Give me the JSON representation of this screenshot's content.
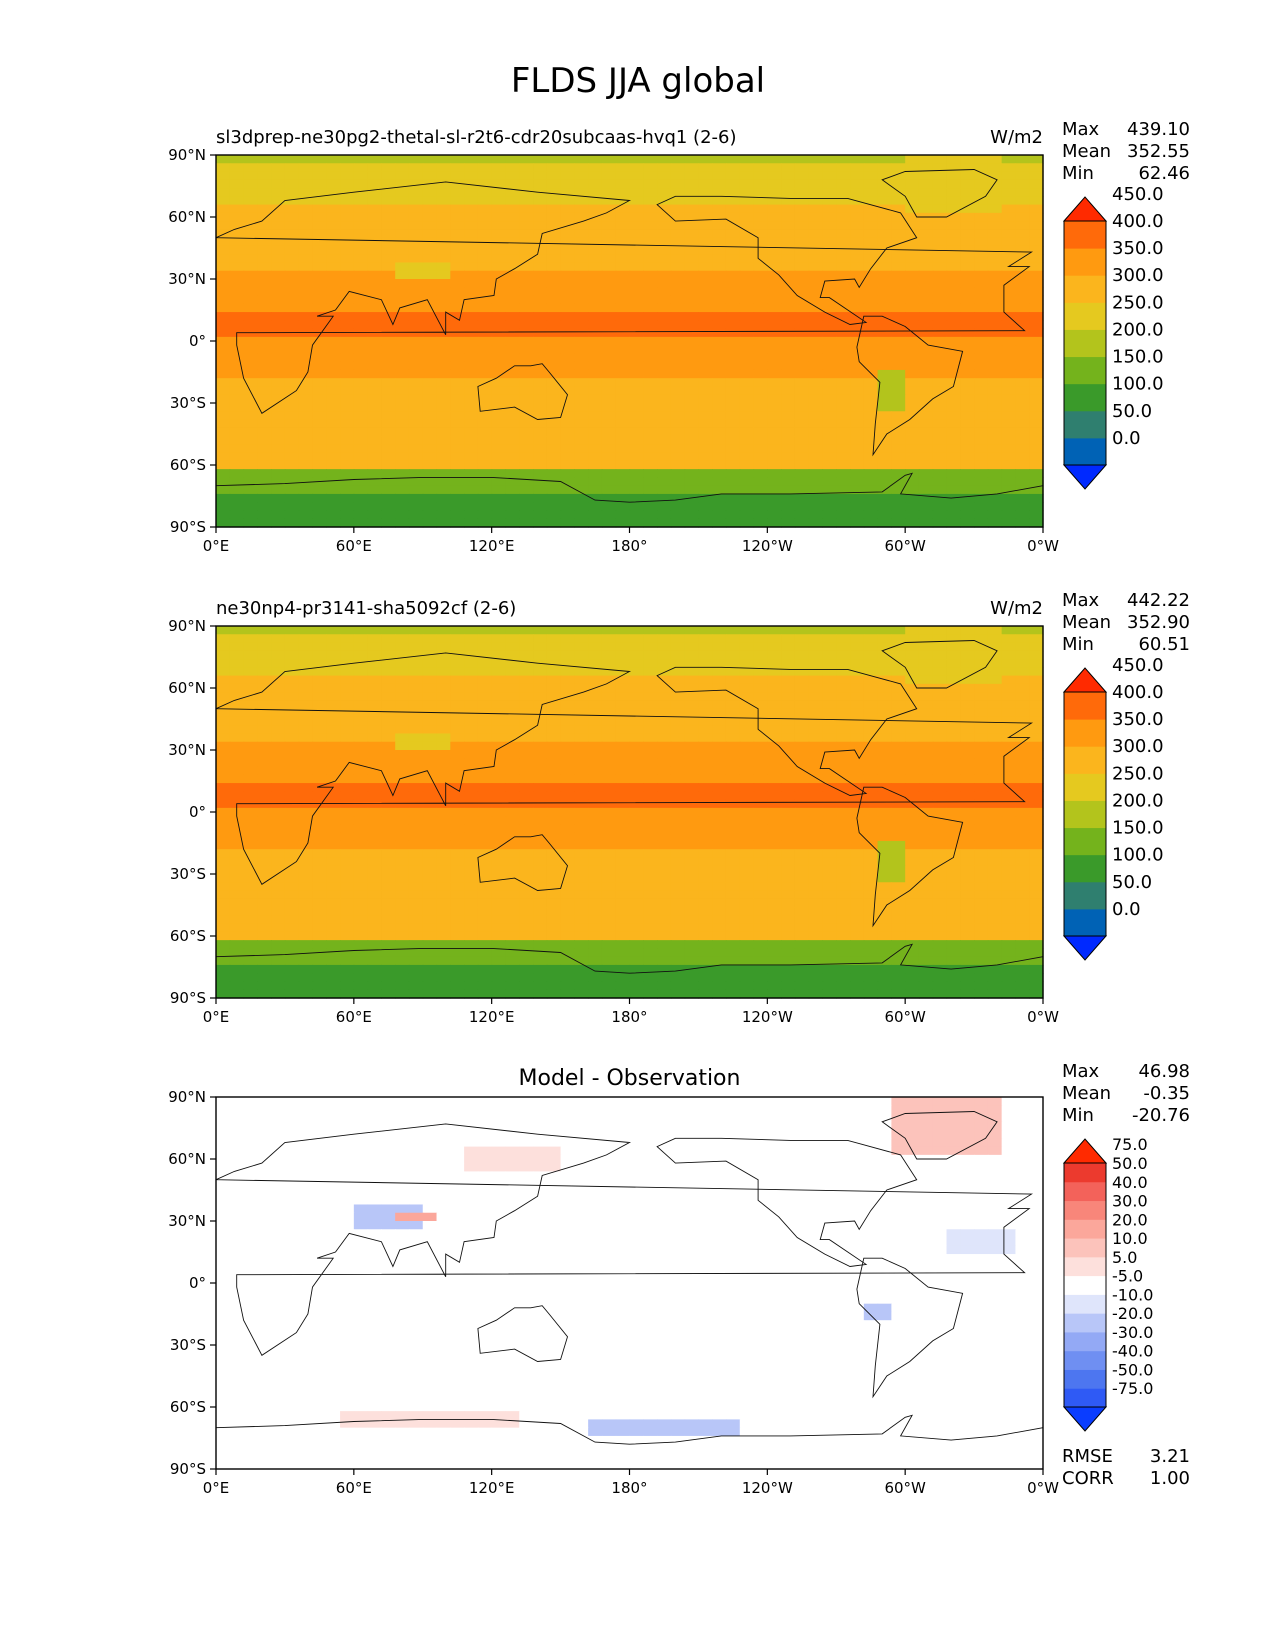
{
  "figure": {
    "title": "FLDS JJA global",
    "lat_ticks": [
      "90°N",
      "60°N",
      "30°N",
      "0°",
      "30°S",
      "60°S",
      "90°S"
    ],
    "lon_ticks": [
      "0°E",
      "60°E",
      "120°E",
      "180°",
      "120°W",
      "60°W",
      "0°W"
    ],
    "colors": {
      "field": [
        "#0029ff",
        "#0062b5",
        "#2f7f6f",
        "#3a9a2a",
        "#74b31c",
        "#b3c41c",
        "#e5c91f",
        "#fbb51d",
        "#ff9a10",
        "#ff6a0a",
        "#ff2a00"
      ],
      "diff": [
        "#0a3dff",
        "#2f5af5",
        "#4d76f0",
        "#6f8ff2",
        "#93a9f5",
        "#b8c6f8",
        "#dfe5fb",
        "#ffffff",
        "#fde0dc",
        "#fcc3bb",
        "#fba79b",
        "#f8867a",
        "#f3625a",
        "#ec3a2e",
        "#ff2a00"
      ]
    }
  },
  "chart_data": [
    {
      "type": "heatmap",
      "name": "test",
      "title": "sl3dprep-ne30pg2-thetal-sl-r2t6-cdr20subcaas-hvq1 (2-6)",
      "units": "W/m2",
      "stats": {
        "Max": "439.10",
        "Mean": "352.55",
        "Min": "62.46"
      },
      "colorbar_levels": [
        "0.0",
        "50.0",
        "100.0",
        "150.0",
        "200.0",
        "250.0",
        "300.0",
        "350.0",
        "400.0",
        "450.0"
      ],
      "xlim": [
        0,
        360
      ],
      "ylim": [
        -90,
        90
      ]
    },
    {
      "type": "heatmap",
      "name": "reference",
      "title": "ne30np4-pr3141-sha5092cf (2-6)",
      "units": "W/m2",
      "stats": {
        "Max": "442.22",
        "Mean": "352.90",
        "Min": "60.51"
      },
      "colorbar_levels": [
        "0.0",
        "50.0",
        "100.0",
        "150.0",
        "200.0",
        "250.0",
        "300.0",
        "350.0",
        "400.0",
        "450.0"
      ],
      "xlim": [
        0,
        360
      ],
      "ylim": [
        -90,
        90
      ]
    },
    {
      "type": "heatmap",
      "name": "difference",
      "title": "Model - Observation",
      "stats": {
        "Max": "46.98",
        "Mean": "-0.35",
        "Min": "-20.76"
      },
      "colorbar_levels": [
        "-75.0",
        "-50.0",
        "-40.0",
        "-30.0",
        "-20.0",
        "-10.0",
        "-5.0",
        "5.0",
        "10.0",
        "20.0",
        "30.0",
        "40.0",
        "50.0",
        "75.0"
      ],
      "metrics": {
        "RMSE": "3.21",
        "CORR": "1.00"
      },
      "xlim": [
        0,
        360
      ],
      "ylim": [
        -90,
        90
      ]
    }
  ]
}
